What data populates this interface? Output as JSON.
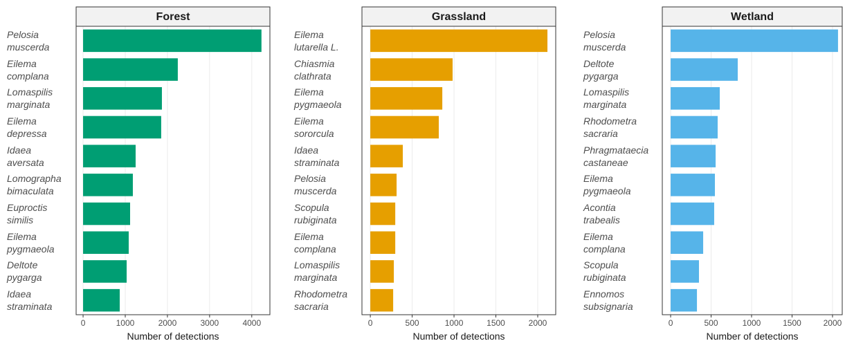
{
  "chart_data": [
    {
      "type": "bar",
      "orientation": "horizontal",
      "title": "Forest",
      "x_label": "Number of detections",
      "categories": [
        "Pelosia\nmuscerda",
        "Eilema\ncomplana",
        "Lomaspilis\nmarginata",
        "Eilema\ndepressa",
        "Idaea\naversata",
        "Lomographa\nbimaculata",
        "Euproctis\nsimilis",
        "Eilema\npygmaeola",
        "Deltote\npygarga",
        "Idaea\nstraminata"
      ],
      "values": [
        4230,
        2246,
        1869,
        1852,
        1246,
        1180,
        1115,
        1082,
        1033,
        869
      ],
      "color": "#009E73",
      "xlim": [
        -165,
        4430
      ],
      "xticks": [
        0,
        1000,
        2000,
        3000,
        4000
      ],
      "grid": true
    },
    {
      "type": "bar",
      "orientation": "horizontal",
      "title": "Grassland",
      "x_label": "Number of detections",
      "categories": [
        "Eilema\nlutarella L.",
        "Chiasmia\nclathrata",
        "Eilema\npygmaeola",
        "Eilema\nsororcula",
        "Idaea\nstraminata",
        "Pelosia\nmuscerda",
        "Scopula\nrubiginata",
        "Eilema\ncomplana",
        "Lomaspilis\nmarginata",
        "Rhodometra\nsacraria"
      ],
      "values": [
        2116,
        983,
        860,
        818,
        388,
        314,
        298,
        298,
        281,
        273
      ],
      "color": "#E69F00",
      "xlim": [
        -100,
        2215
      ],
      "xticks": [
        0,
        500,
        1000,
        1500,
        2000
      ],
      "grid": true
    },
    {
      "type": "bar",
      "orientation": "horizontal",
      "title": "Wetland",
      "x_label": "Number of detections",
      "categories": [
        "Pelosia\nmuscerda",
        "Deltote\npygarga",
        "Lomaspilis\nmarginata",
        "Rhodometra\nsacraria",
        "Phragmataecia\ncastaneae",
        "Eilema\npygmaeola",
        "Acontia\ntrabealis",
        "Eilema\ncomplana",
        "Scopula\nrubiginata",
        "Ennomos\nsubsignaria"
      ],
      "values": [
        2068,
        829,
        607,
        581,
        556,
        547,
        538,
        402,
        350,
        325
      ],
      "color": "#56B4E9",
      "xlim": [
        -103,
        2120
      ],
      "xticks": [
        0,
        500,
        1000,
        1500,
        2000
      ],
      "grid": true
    }
  ]
}
